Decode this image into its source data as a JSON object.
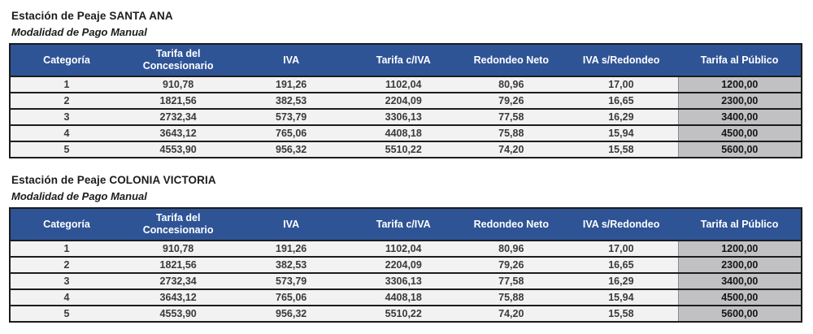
{
  "colors": {
    "header_bg": "#2f5496",
    "header_text": "#ffffff",
    "row_bg": "#f2f2f2",
    "public_column_bg": "#c1c1c4",
    "border": "#1c1c1c"
  },
  "tables": [
    {
      "title": "Estación de Peaje SANTA ANA",
      "subtitle": "Modalidad de Pago Manual",
      "columns": [
        "Categoría",
        "Tarifa del Concesionario",
        "IVA",
        "Tarifa c/IVA",
        "Redondeo Neto",
        "IVA s/Redondeo",
        "Tarifa al Público"
      ],
      "rows": [
        [
          "1",
          "910,78",
          "191,26",
          "1102,04",
          "80,96",
          "17,00",
          "1200,00"
        ],
        [
          "2",
          "1821,56",
          "382,53",
          "2204,09",
          "79,26",
          "16,65",
          "2300,00"
        ],
        [
          "3",
          "2732,34",
          "573,79",
          "3306,13",
          "77,58",
          "16,29",
          "3400,00"
        ],
        [
          "4",
          "3643,12",
          "765,06",
          "4408,18",
          "75,88",
          "15,94",
          "4500,00"
        ],
        [
          "5",
          "4553,90",
          "956,32",
          "5510,22",
          "74,20",
          "15,58",
          "5600,00"
        ]
      ]
    },
    {
      "title": "Estación de Peaje COLONIA VICTORIA",
      "subtitle": "Modalidad de Pago Manual",
      "columns": [
        "Categoría",
        "Tarifa del Concesionario",
        "IVA",
        "Tarifa c/IVA",
        "Redondeo Neto",
        "IVA s/Redondeo",
        "Tarifa al Público"
      ],
      "rows": [
        [
          "1",
          "910,78",
          "191,26",
          "1102,04",
          "80,96",
          "17,00",
          "1200,00"
        ],
        [
          "2",
          "1821,56",
          "382,53",
          "2204,09",
          "79,26",
          "16,65",
          "2300,00"
        ],
        [
          "3",
          "2732,34",
          "573,79",
          "3306,13",
          "77,58",
          "16,29",
          "3400,00"
        ],
        [
          "4",
          "3643,12",
          "765,06",
          "4408,18",
          "75,88",
          "15,94",
          "4500,00"
        ],
        [
          "5",
          "4553,90",
          "956,32",
          "5510,22",
          "74,20",
          "15,58",
          "5600,00"
        ]
      ]
    }
  ]
}
